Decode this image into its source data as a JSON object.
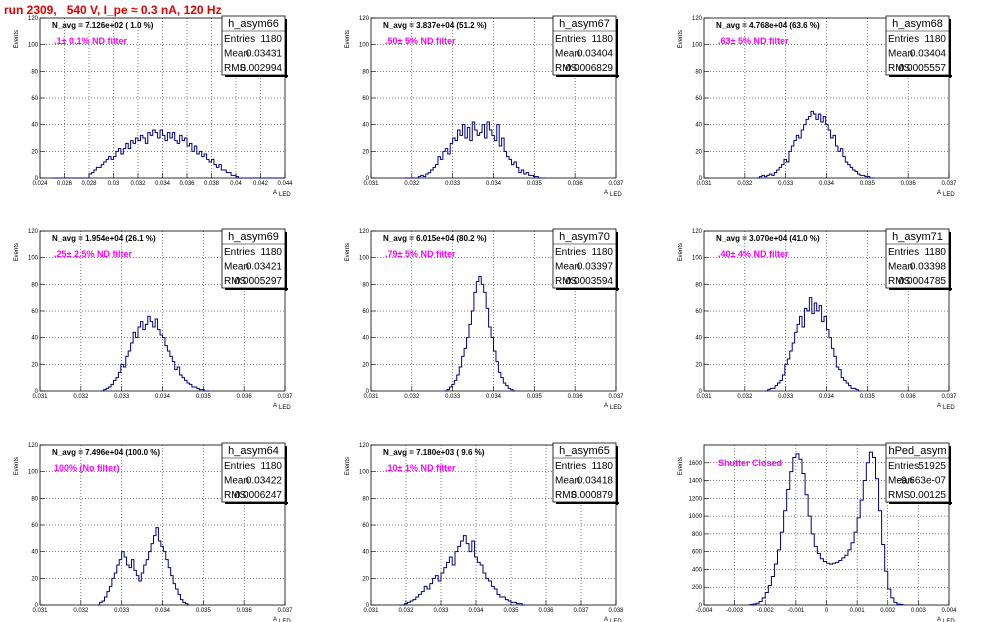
{
  "header": {
    "title": "run 2309,   540 V, I_pe ≈ 0.3 nA, 120 Hz"
  },
  "chart_data": [
    {
      "type": "bar",
      "name": "h_asym66",
      "stats": {
        "entries_label": "Entries",
        "entries": "1180",
        "mean_label": "Mean",
        "mean": "0.03431",
        "rms_label": "RMS",
        "rms": "0.002994"
      },
      "navg": "N_avg = 7.126e+02 ( 1.0 %)",
      "filter": ".1± 0.1% ND filter",
      "ylabel": "Events",
      "xlabel": "A",
      "xlabel_sub": "LED",
      "xlim": [
        0.024,
        0.044
      ],
      "ylim": [
        0,
        120
      ],
      "xticks": [
        "0.024",
        "0.026",
        "0.028",
        "0.03",
        "0.032",
        "0.034",
        "0.036",
        "0.038",
        "0.04",
        "0.042",
        "0.044"
      ],
      "yticks": [
        "0",
        "20",
        "40",
        "60",
        "80",
        "100",
        "120"
      ],
      "bin_start": 0.025,
      "bin_width": 0.0002,
      "values": [
        0,
        0,
        0,
        0,
        0,
        0,
        0,
        0,
        0,
        0,
        0,
        0,
        0,
        0,
        0,
        3,
        4,
        6,
        8,
        8,
        10,
        12,
        14,
        16,
        14,
        16,
        20,
        22,
        18,
        22,
        26,
        22,
        28,
        26,
        30,
        28,
        32,
        30,
        26,
        34,
        32,
        36,
        34,
        30,
        36,
        32,
        28,
        34,
        30,
        34,
        28,
        26,
        32,
        28,
        30,
        24,
        26,
        20,
        24,
        18,
        20,
        16,
        18,
        14,
        12,
        14,
        10,
        8,
        10,
        6,
        6,
        4,
        4,
        2,
        2,
        1,
        0,
        0,
        0,
        0,
        0,
        0,
        0,
        0,
        0,
        0,
        0,
        0,
        0,
        0,
        0,
        0,
        0,
        0,
        0
      ]
    },
    {
      "type": "bar",
      "name": "h_asym67",
      "stats": {
        "entries_label": "Entries",
        "entries": "1180",
        "mean_label": "Mean",
        "mean": "0.03404",
        "rms_label": "RMS",
        "rms": "0.0006829"
      },
      "navg": "N_avg = 3.837e+04 (51.2 %)",
      "filter": ".50± 5% ND filter",
      "ylabel": "Events",
      "xlabel": "A",
      "xlabel_sub": "LED",
      "xlim": [
        0.031,
        0.037
      ],
      "ylim": [
        0,
        120
      ],
      "xticks": [
        "0.031",
        "0.032",
        "0.033",
        "0.034",
        "0.035",
        "0.036",
        "0.037"
      ],
      "yticks": [
        "0",
        "20",
        "40",
        "60",
        "80",
        "100",
        "120"
      ],
      "bin_start": 0.0318,
      "bin_width": 6e-05,
      "values": [
        0,
        0,
        0,
        0,
        0,
        0,
        1,
        2,
        1,
        3,
        4,
        6,
        8,
        10,
        16,
        14,
        20,
        22,
        18,
        26,
        30,
        28,
        36,
        32,
        40,
        30,
        38,
        28,
        42,
        36,
        32,
        34,
        40,
        30,
        42,
        36,
        32,
        28,
        40,
        24,
        30,
        20,
        16,
        14,
        10,
        12,
        8,
        4,
        6,
        3,
        4,
        2,
        2,
        1,
        1,
        0,
        0,
        0
      ]
    },
    {
      "type": "bar",
      "name": "h_asym68",
      "stats": {
        "entries_label": "Entries",
        "entries": "1180",
        "mean_label": "Mean",
        "mean": "0.03404",
        "rms_label": "RMS",
        "rms": "0.0005557"
      },
      "navg": "N_avg = 4.768e+04 (63.6 %)",
      "filter": ".63± 5% ND filter",
      "ylabel": "Events",
      "xlabel": "A",
      "xlabel_sub": "LED",
      "xlim": [
        0.031,
        0.037
      ],
      "ylim": [
        0,
        120
      ],
      "xticks": [
        "0.031",
        "0.032",
        "0.033",
        "0.034",
        "0.035",
        "0.036",
        "0.037"
      ],
      "yticks": [
        "0",
        "20",
        "40",
        "60",
        "80",
        "100",
        "120"
      ],
      "bin_start": 0.0323,
      "bin_width": 6e-05,
      "values": [
        0,
        1,
        2,
        1,
        2,
        3,
        2,
        4,
        6,
        8,
        10,
        14,
        12,
        20,
        24,
        28,
        32,
        30,
        36,
        40,
        44,
        46,
        50,
        48,
        44,
        48,
        42,
        46,
        40,
        36,
        30,
        32,
        24,
        20,
        22,
        16,
        12,
        10,
        8,
        6,
        5,
        3,
        2,
        2,
        1,
        1,
        0,
        0
      ]
    },
    {
      "type": "bar",
      "name": "h_asym69",
      "stats": {
        "entries_label": "Entries",
        "entries": "1180",
        "mean_label": "Mean",
        "mean": "0.03421",
        "rms_label": "RMS",
        "rms": "0.0005297"
      },
      "navg": "N_avg = 1.954e+04 (26.1 %)",
      "filter": ".25± 2.5% ND filter",
      "ylabel": "Events",
      "xlabel": "A",
      "xlabel_sub": "LED",
      "xlim": [
        0.031,
        0.037
      ],
      "ylim": [
        0,
        120
      ],
      "xticks": [
        "0.031",
        "0.032",
        "0.033",
        "0.034",
        "0.035",
        "0.036",
        "0.037"
      ],
      "yticks": [
        "0",
        "20",
        "40",
        "60",
        "80",
        "100",
        "120"
      ],
      "bin_start": 0.0325,
      "bin_width": 6e-05,
      "values": [
        0,
        1,
        2,
        3,
        5,
        8,
        10,
        14,
        20,
        18,
        26,
        30,
        36,
        44,
        40,
        48,
        52,
        46,
        50,
        56,
        52,
        48,
        54,
        46,
        42,
        40,
        34,
        30,
        26,
        22,
        16,
        18,
        12,
        10,
        8,
        6,
        5,
        3,
        3,
        2,
        1,
        1,
        0,
        0
      ]
    },
    {
      "type": "bar",
      "name": "h_asym70",
      "stats": {
        "entries_label": "Entries",
        "entries": "1180",
        "mean_label": "Mean",
        "mean": "0.03397",
        "rms_label": "RMS",
        "rms": "0.0003594"
      },
      "navg": "N_avg = 6.015e+04 (80.2 %)",
      "filter": ".79± 5% ND filter",
      "ylabel": "Events",
      "xlabel": "A",
      "xlabel_sub": "LED",
      "xlim": [
        0.031,
        0.037
      ],
      "ylim": [
        0,
        120
      ],
      "xticks": [
        "0.031",
        "0.032",
        "0.033",
        "0.034",
        "0.035",
        "0.036",
        "0.037"
      ],
      "yticks": [
        "0",
        "20",
        "40",
        "60",
        "80",
        "100",
        "120"
      ],
      "bin_start": 0.0328,
      "bin_width": 6e-05,
      "values": [
        0,
        1,
        3,
        5,
        8,
        12,
        18,
        26,
        32,
        40,
        50,
        60,
        74,
        82,
        86,
        80,
        74,
        62,
        48,
        40,
        30,
        22,
        14,
        10,
        6,
        4,
        2,
        1,
        0
      ]
    },
    {
      "type": "bar",
      "name": "h_asym71",
      "stats": {
        "entries_label": "Entries",
        "entries": "1180",
        "mean_label": "Mean",
        "mean": "0.03398",
        "rms_label": "RMS",
        "rms": "0.0004785"
      },
      "navg": "N_avg = 3.070e+04 (41.0 %)",
      "filter": ".40± 4% ND filter",
      "ylabel": "Events",
      "xlabel": "A",
      "xlabel_sub": "LED",
      "xlim": [
        0.031,
        0.037
      ],
      "ylim": [
        0,
        120
      ],
      "xticks": [
        "0.031",
        "0.032",
        "0.033",
        "0.034",
        "0.035",
        "0.036",
        "0.037"
      ],
      "yticks": [
        "0",
        "20",
        "40",
        "60",
        "80",
        "100",
        "120"
      ],
      "bin_start": 0.0325,
      "bin_width": 6e-05,
      "values": [
        0,
        1,
        2,
        2,
        4,
        6,
        8,
        12,
        20,
        24,
        30,
        36,
        44,
        50,
        56,
        48,
        62,
        60,
        70,
        58,
        66,
        60,
        64,
        52,
        56,
        46,
        40,
        32,
        26,
        18,
        16,
        10,
        8,
        6,
        4,
        2,
        2,
        1,
        0
      ]
    },
    {
      "type": "bar",
      "name": "h_asym64",
      "stats": {
        "entries_label": "Entries",
        "entries": "1180",
        "mean_label": "Mean",
        "mean": "0.03422",
        "rms_label": "RMS",
        "rms": "0.0006247"
      },
      "navg": "N_avg = 7.496e+04 (100.0 %)",
      "filter": "100% (No filter)",
      "ylabel": "Events",
      "xlabel": "A",
      "xlabel_sub": "LED",
      "xlim": [
        0.031,
        0.037
      ],
      "ylim": [
        0,
        120
      ],
      "xticks": [
        "0.031",
        "0.032",
        "0.033",
        "0.034",
        "0.035",
        "0.036",
        "0.037"
      ],
      "yticks": [
        "0",
        "20",
        "40",
        "60",
        "80",
        "100",
        "120"
      ],
      "bin_start": 0.0324,
      "bin_width": 6e-05,
      "values": [
        0,
        2,
        3,
        6,
        10,
        14,
        20,
        24,
        30,
        34,
        40,
        36,
        30,
        28,
        34,
        26,
        22,
        18,
        24,
        30,
        34,
        40,
        46,
        52,
        58,
        48,
        44,
        40,
        34,
        28,
        22,
        16,
        12,
        8,
        4,
        2,
        1,
        0
      ]
    },
    {
      "type": "bar",
      "name": "h_asym65",
      "stats": {
        "entries_label": "Entries",
        "entries": "1180",
        "mean_label": "Mean",
        "mean": "0.03418",
        "rms_label": "RMS",
        "rms": "0.000879"
      },
      "navg": "N_avg = 7.180e+03 ( 9.6 %)",
      "filter": ".10± 1% ND filter",
      "ylabel": "Events",
      "xlabel": "A",
      "xlabel_sub": "LED",
      "xlim": [
        0.031,
        0.038
      ],
      "ylim": [
        0,
        120
      ],
      "xticks": [
        "0.031",
        "0.032",
        "0.033",
        "0.034",
        "0.035",
        "0.036",
        "0.037",
        "0.038"
      ],
      "yticks": [
        "0",
        "20",
        "40",
        "60",
        "80",
        "100",
        "120"
      ],
      "bin_start": 0.0318,
      "bin_width": 8e-05,
      "values": [
        0,
        0,
        1,
        2,
        3,
        4,
        6,
        8,
        10,
        14,
        12,
        16,
        20,
        22,
        18,
        24,
        28,
        32,
        36,
        30,
        40,
        44,
        48,
        52,
        46,
        40,
        48,
        36,
        32,
        30,
        24,
        20,
        18,
        14,
        12,
        8,
        6,
        6,
        4,
        3,
        2,
        2,
        1,
        1,
        0
      ]
    },
    {
      "type": "bar",
      "name": "hPed_asym",
      "stats": {
        "entries_label": "Entries",
        "entries": "51925",
        "mean_label": "Mean",
        "mean": "-9.663e-07",
        "rms_label": "RMS",
        "rms": "0.00125"
      },
      "navg": "",
      "filter": "Shutter Closed",
      "ylabel": "Events",
      "xlabel": "A",
      "xlabel_sub": "LED",
      "xlim": [
        -0.004,
        0.004
      ],
      "ylim": [
        0,
        1800
      ],
      "xticks": [
        "-0.004",
        "-0.003",
        "-0.002",
        "-0.001",
        "0",
        "0.001",
        "0.002",
        "0.003",
        "0.004"
      ],
      "yticks": [
        "0",
        "200",
        "400",
        "600",
        "800",
        "1000",
        "1200",
        "1400",
        "1600"
      ],
      "bin_start": -0.0025,
      "bin_width": 0.0001,
      "values": [
        5,
        10,
        20,
        40,
        80,
        140,
        220,
        320,
        460,
        620,
        820,
        1060,
        1300,
        1500,
        1660,
        1700,
        1640,
        1480,
        1240,
        1000,
        800,
        660,
        580,
        520,
        490,
        470,
        460,
        470,
        480,
        500,
        530,
        560,
        620,
        700,
        820,
        980,
        1180,
        1400,
        1600,
        1720,
        1660,
        1420,
        1060,
        680,
        380,
        180,
        80,
        30,
        10,
        5
      ]
    }
  ]
}
